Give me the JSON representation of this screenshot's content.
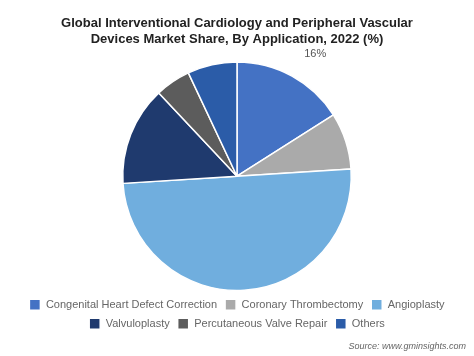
{
  "chart_data": {
    "type": "pie",
    "title": "Global Interventional Cardiology and Peripheral Vascular\nDevices Market Share, By Application, 2022 (%)",
    "categories": [
      "Congenital Heart Defect Correction",
      "Coronary Thrombectomy",
      "Angioplasty",
      "Valvuloplasty",
      "Percutaneous Valve Repair",
      "Others"
    ],
    "values": [
      16,
      8,
      50,
      14,
      5,
      7
    ],
    "colors": [
      "#4472C4",
      "#AAAAAA",
      "#70AEDE",
      "#1F3A6E",
      "#5C5C5C",
      "#2B5CA8"
    ],
    "annotations": [
      {
        "text": "16%",
        "category": "Congenital Heart Defect Correction"
      },
      {
        "text": "Source: www.gminsights.com"
      }
    ],
    "legend": "bottom"
  }
}
